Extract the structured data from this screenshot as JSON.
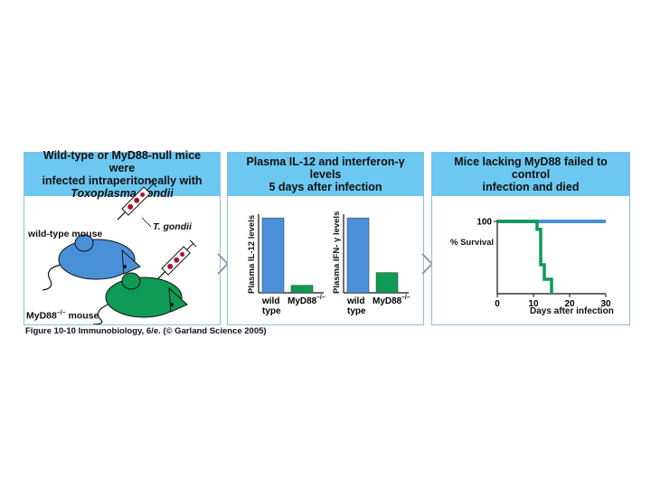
{
  "panel1": {
    "header_line1": "Wild-type or MyD88-null mice were",
    "header_line2": "infected intraperitoneally with",
    "header_line3": "Toxoplasma gondii",
    "label_wild": "wild-type mouse",
    "label_tgondii": "T. gondii",
    "label_myd88": "MyD88",
    "label_myd88_sup": "–/–",
    "label_myd88_suffix": " mouse"
  },
  "panel2": {
    "header_line1": "Plasma IL-12 and interferon-γ levels",
    "header_line2": "5 days after infection"
  },
  "panel3": {
    "header_line1": "Mice lacking MyD88 failed to control",
    "header_line2": "infection and died"
  },
  "chart_data": [
    {
      "type": "bar",
      "ylabel": "Plasma IL-12 levels",
      "categories": [
        "wild type",
        "MyD88–/–"
      ],
      "values": [
        100,
        10
      ],
      "colors": [
        "#4a90d9",
        "#0f9a55"
      ],
      "ylim": [
        0,
        105
      ]
    },
    {
      "type": "bar",
      "ylabel": "Plasma IFN- γ levels",
      "categories": [
        "wild type",
        "MyD88–/–"
      ],
      "values": [
        100,
        27
      ],
      "colors": [
        "#4a90d9",
        "#0f9a55"
      ],
      "ylim": [
        0,
        105
      ]
    },
    {
      "type": "line",
      "xlabel": "Days after infection",
      "ylabel": "% Survival",
      "xticks": [
        "0",
        "10",
        "20",
        "30"
      ],
      "yticks": [
        "100"
      ],
      "xlim": [
        0,
        30
      ],
      "ylim": [
        0,
        100
      ],
      "series": [
        {
          "color": "#4a90d9",
          "x": [
            0,
            30
          ],
          "y": [
            100,
            100
          ]
        },
        {
          "color": "#0f9a55",
          "x": [
            0,
            11,
            11,
            12,
            12,
            13,
            13,
            15,
            15
          ],
          "y": [
            100,
            100,
            89,
            89,
            40,
            40,
            20,
            20,
            0
          ]
        }
      ]
    }
  ],
  "caption": "Figure 10-10  Immunobiology, 6/e. (© Garland Science 2005)"
}
